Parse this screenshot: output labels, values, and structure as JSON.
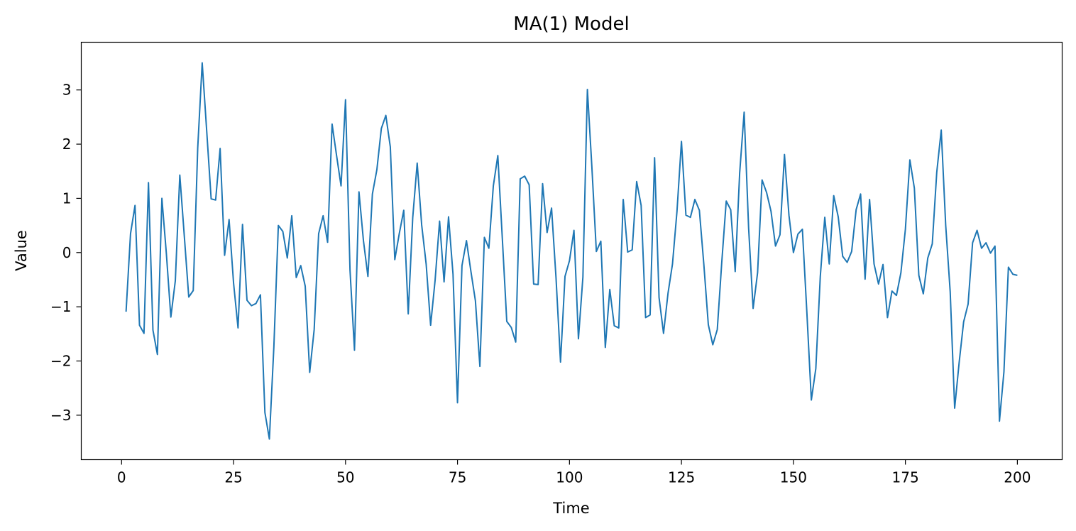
{
  "chart_data": {
    "type": "line",
    "title": "MA(1) Model",
    "xlabel": "Time",
    "ylabel": "Value",
    "xlim": [
      -9,
      210
    ],
    "ylim": [
      -3.82,
      3.88
    ],
    "xticks": [
      0,
      25,
      50,
      75,
      100,
      125,
      150,
      175,
      200
    ],
    "yticks": [
      -3,
      -2,
      -1,
      0,
      1,
      2,
      3
    ],
    "xtick_labels": [
      "0",
      "25",
      "50",
      "75",
      "100",
      "125",
      "150",
      "175",
      "200"
    ],
    "ytick_labels": [
      "−3",
      "−2",
      "−1",
      "0",
      "1",
      "2",
      "3"
    ],
    "grid": false,
    "color": "#1f77b4",
    "series": [
      {
        "x_start": 1,
        "x_step": 1,
        "values": [
          -1.09,
          0.35,
          0.87,
          -1.34,
          -1.49,
          1.29,
          -1.43,
          -1.88,
          1.0,
          -0.02,
          -1.19,
          -0.52,
          1.43,
          0.31,
          -0.82,
          -0.7,
          1.93,
          3.5,
          2.25,
          0.99,
          0.97,
          1.92,
          -0.05,
          0.61,
          -0.56,
          -1.39,
          0.52,
          -0.88,
          -0.98,
          -0.94,
          -0.78,
          -2.95,
          -3.44,
          -1.74,
          0.5,
          0.39,
          -0.1,
          0.68,
          -0.46,
          -0.24,
          -0.62,
          -2.21,
          -1.42,
          0.35,
          0.68,
          0.19,
          2.37,
          1.79,
          1.23,
          2.82,
          -0.32,
          -1.8,
          1.12,
          0.22,
          -0.44,
          1.08,
          1.53,
          2.29,
          2.53,
          1.95,
          -0.13,
          0.35,
          0.78,
          -1.13,
          0.64,
          1.65,
          0.51,
          -0.21,
          -1.34,
          -0.51,
          0.58,
          -0.54,
          0.66,
          -0.4,
          -2.77,
          -0.24,
          0.22,
          -0.35,
          -0.89,
          -2.1,
          0.28,
          0.08,
          1.23,
          1.79,
          0.27,
          -1.27,
          -1.38,
          -1.65,
          1.36,
          1.41,
          1.25,
          -0.58,
          -0.59,
          1.27,
          0.37,
          0.82,
          -0.47,
          -2.02,
          -0.44,
          -0.15,
          0.41,
          -1.59,
          -0.45,
          3.01,
          1.58,
          0.02,
          0.21,
          -1.75,
          -0.68,
          -1.35,
          -1.39,
          0.98,
          0.01,
          0.05,
          1.31,
          0.87,
          -1.2,
          -1.15,
          1.75,
          -0.83,
          -1.49,
          -0.75,
          -0.21,
          0.76,
          2.05,
          0.69,
          0.65,
          0.98,
          0.78,
          -0.22,
          -1.33,
          -1.7,
          -1.42,
          -0.18,
          0.95,
          0.79,
          -0.35,
          1.47,
          2.59,
          0.45,
          -1.03,
          -0.37,
          1.34,
          1.11,
          0.76,
          0.12,
          0.33,
          1.81,
          0.69,
          0.0,
          0.34,
          0.43,
          -1.1,
          -2.72,
          -2.14,
          -0.44,
          0.65,
          -0.21,
          1.05,
          0.66,
          -0.07,
          -0.18,
          0.02,
          0.79,
          1.08,
          -0.49,
          0.98,
          -0.21,
          -0.58,
          -0.22,
          -1.2,
          -0.71,
          -0.79,
          -0.37,
          0.43,
          1.71,
          1.19,
          -0.42,
          -0.76,
          -0.1,
          0.16,
          1.48,
          2.26,
          0.5,
          -0.72,
          -2.87,
          -2.03,
          -1.28,
          -0.95,
          0.18,
          0.41,
          0.08,
          0.18,
          -0.01,
          0.12,
          -3.11,
          -2.2,
          -0.27,
          -0.4,
          -0.42
        ]
      }
    ]
  }
}
